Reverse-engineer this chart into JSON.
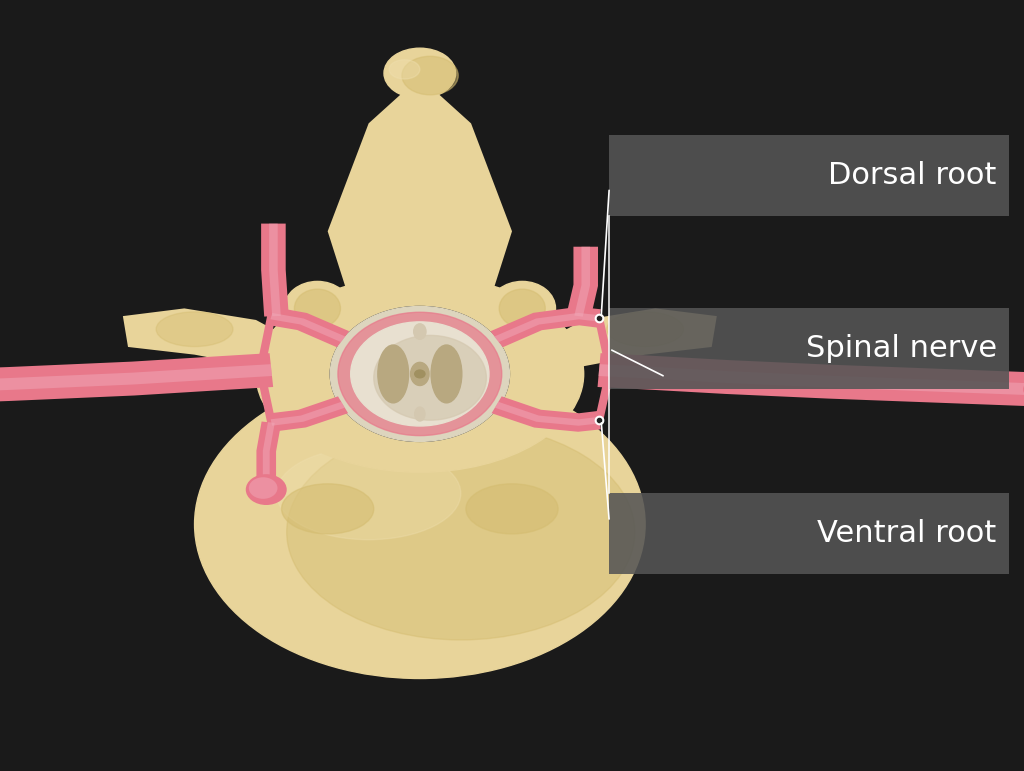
{
  "background_color": "#1a1a1a",
  "vertebra_color": "#e8d49a",
  "vertebra_mid": "#d4bc70",
  "vertebra_dark": "#c8a850",
  "vertebra_light": "#f0e0b0",
  "spinal_cord_outer": "#e8e0d0",
  "spinal_cord_mid": "#d4c8b0",
  "spinal_cord_dark": "#b8a880",
  "spinal_cord_center": "#a09060",
  "nerve_color": "#e8788a",
  "nerve_dark": "#c05868",
  "nerve_light": "#f0a8b8",
  "label_bg_color": "#555555",
  "label_text_color": "#ffffff",
  "label_dorsal_root": "Dorsal root",
  "label_spinal_nerve": "Spinal nerve",
  "label_ventral_root": "Ventral root",
  "figsize": [
    10.24,
    7.71
  ],
  "dpi": 100
}
